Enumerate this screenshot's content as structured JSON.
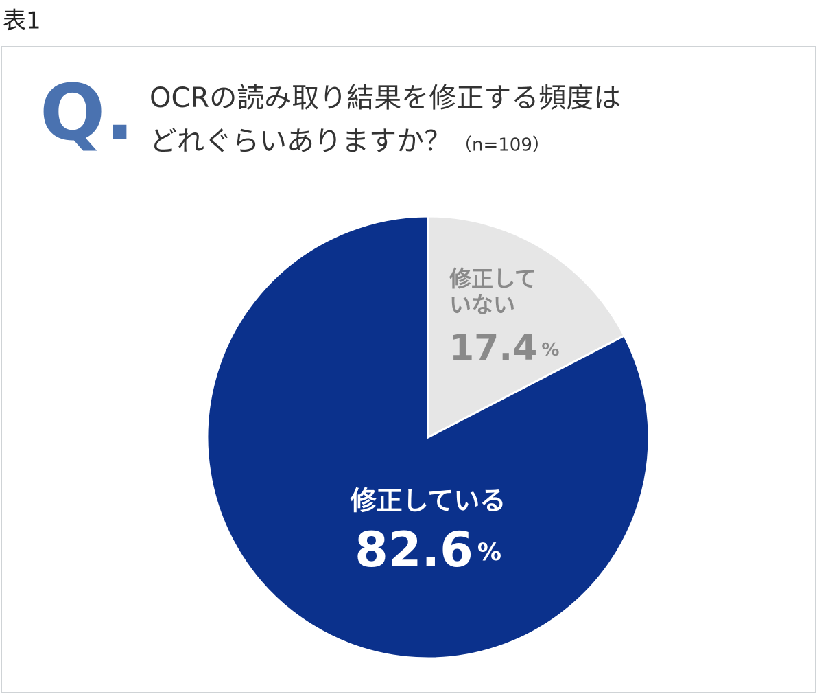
{
  "caption": "表1",
  "chart_data": {
    "type": "pie",
    "question_marker": "Q.",
    "title": [
      "OCRの読み取り結果を修正する頻度は",
      "どれぐらいありますか？"
    ],
    "note": "（n=109）",
    "categories": [
      "修正していない",
      "修正している"
    ],
    "values": [
      17.4,
      82.6
    ],
    "value_labels": [
      "17.4%",
      "82.6%"
    ],
    "colors": [
      "#e6e6e6",
      "#0b318c"
    ],
    "label_colors": [
      "#8a8a8a",
      "#ffffff"
    ]
  }
}
